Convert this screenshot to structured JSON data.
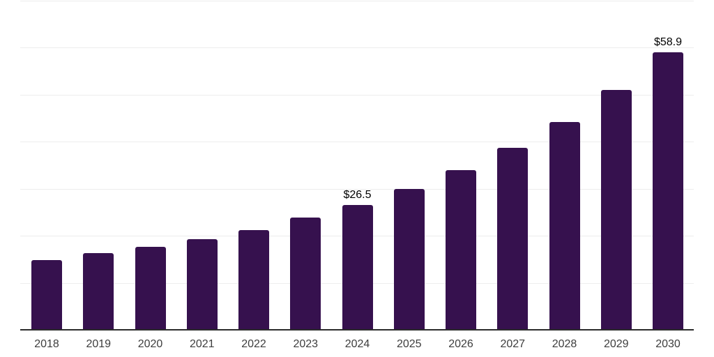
{
  "chart_data": {
    "type": "bar",
    "title": "",
    "xlabel": "",
    "ylabel": "",
    "categories": [
      "2018",
      "2019",
      "2020",
      "2021",
      "2022",
      "2023",
      "2024",
      "2025",
      "2026",
      "2027",
      "2028",
      "2029",
      "2030"
    ],
    "values": [
      14.8,
      16.3,
      17.7,
      19.2,
      21.2,
      23.9,
      26.5,
      30.0,
      34.0,
      38.6,
      44.2,
      50.9,
      58.9
    ],
    "annotations": [
      {
        "category": "2024",
        "label": "$26.5"
      },
      {
        "category": "2030",
        "label": "$58.9"
      }
    ],
    "ylim": [
      0,
      70
    ],
    "gridline_step": 10,
    "grid": "horizontal",
    "legend": "none",
    "colors": {
      "bar": "#36114E",
      "axis_line": "#2b2b2b",
      "gridline": "#ededed",
      "tick_label": "#3d3d3d",
      "value_label": "#000000",
      "background": "#ffffff"
    }
  }
}
